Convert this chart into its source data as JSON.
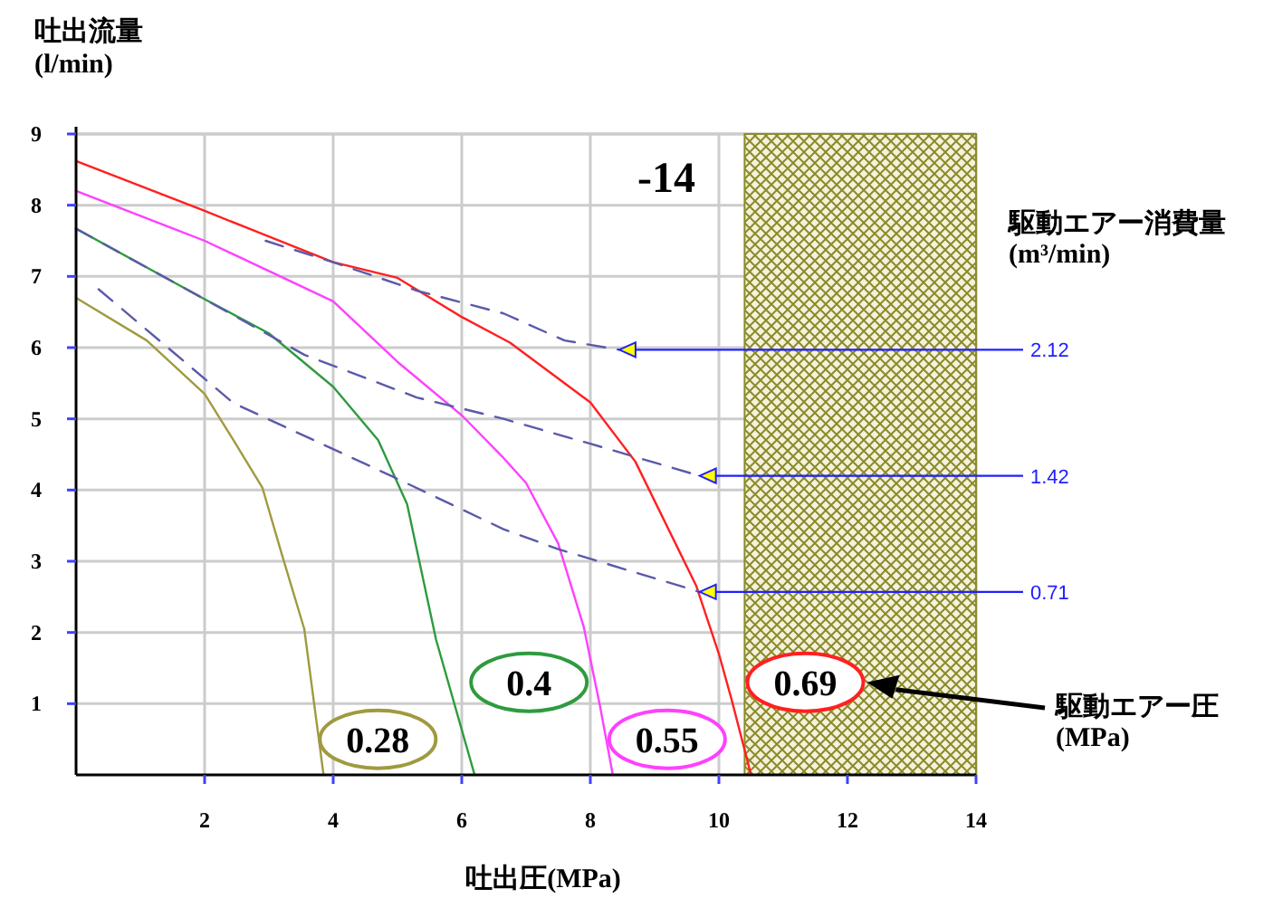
{
  "chart_data": {
    "type": "line",
    "xlabel": "吐出圧(MPa)",
    "ylabel": "吐出流量\n(l/min)",
    "legend_title": "駆動エアー消費量\n(m³/min)",
    "xlim": [
      0,
      14
    ],
    "ylim": [
      0,
      9
    ],
    "xticks": [
      2,
      4,
      6,
      8,
      10,
      12,
      14
    ],
    "yticks": [
      1,
      2,
      3,
      4,
      5,
      6,
      7,
      8,
      9
    ],
    "grid": true,
    "bands": [
      {
        "axis": "x",
        "from": 10.4,
        "to": 14,
        "color": "#8b8b2a"
      }
    ],
    "annotations": [
      "-14",
      "駆動エアー圧\n(MPa)"
    ],
    "series": [
      {
        "name": "0.28",
        "color": "#a09a40",
        "x": [
          0,
          1.1,
          2,
          2.45,
          2.9,
          3.2,
          3.55,
          3.85
        ],
        "values": [
          6.7,
          6.1,
          5.35,
          4.7,
          4.03,
          3.1,
          2.05,
          0
        ]
      },
      {
        "name": "0.4",
        "color": "#2e9b3e",
        "x": [
          0,
          2,
          3,
          4,
          4.7,
          5.15,
          5.6,
          6.2
        ],
        "values": [
          7.67,
          6.68,
          6.2,
          5.45,
          4.7,
          3.8,
          1.9,
          0
        ]
      },
      {
        "name": "0.55",
        "color": "#ff40ff",
        "x": [
          0,
          2,
          4,
          5,
          6,
          6.65,
          7,
          7.5,
          7.9,
          8.15,
          8.35
        ],
        "values": [
          8.2,
          7.5,
          6.65,
          5.8,
          5.05,
          4.45,
          4.1,
          3.25,
          2.07,
          0.97,
          0
        ]
      },
      {
        "name": "0.69",
        "color": "#ff2020",
        "x": [
          0,
          2,
          4,
          5,
          6,
          6.75,
          8,
          8.7,
          9.65,
          10,
          10.2,
          10.5
        ],
        "values": [
          8.62,
          7.92,
          7.2,
          6.98,
          6.43,
          6.07,
          5.23,
          4.4,
          2.65,
          1.7,
          1.05,
          0
        ]
      },
      {
        "name": "2.12",
        "color": "#5a5aaa",
        "line_style": "dashed",
        "x": [
          2.95,
          4,
          5.3,
          6.65,
          7.6,
          8.45
        ],
        "values": [
          7.5,
          7.2,
          6.8,
          6.48,
          6.1,
          5.97
        ]
      },
      {
        "name": "1.42",
        "color": "#5a5aaa",
        "line_style": "dashed",
        "x": [
          0,
          2,
          3.55,
          5.3,
          6.65,
          8,
          9.7
        ],
        "values": [
          7.67,
          6.68,
          5.9,
          5.3,
          5.0,
          4.65,
          4.2
        ]
      },
      {
        "name": "0.71",
        "color": "#5a5aaa",
        "line_style": "dashed",
        "x": [
          0.35,
          2.45,
          4.9,
          6.65,
          7.5,
          9.7
        ],
        "values": [
          6.82,
          5.22,
          4.2,
          3.45,
          3.17,
          2.57
        ]
      }
    ]
  }
}
